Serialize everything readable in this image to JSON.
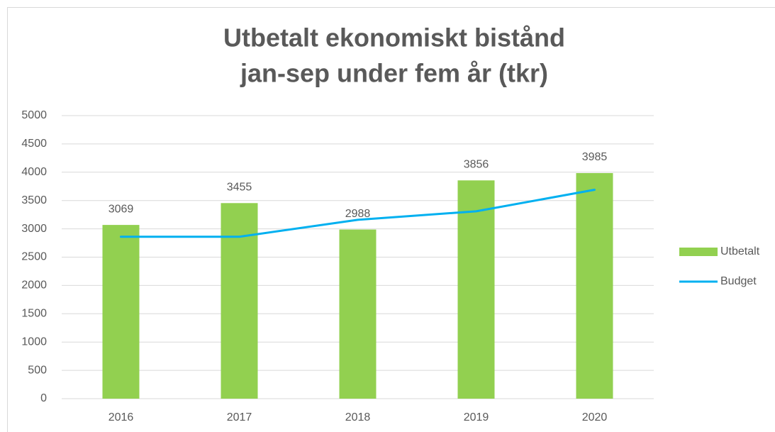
{
  "chart_data": {
    "type": "bar",
    "title": [
      "Utbetalt ekonomiskt bistånd",
      "jan-sep under fem år (tkr)"
    ],
    "categories": [
      "2016",
      "2017",
      "2018",
      "2019",
      "2020"
    ],
    "series": [
      {
        "name": "Utbetalt",
        "type": "bar",
        "color": "#92d050",
        "values": [
          3069,
          3455,
          2988,
          3856,
          3985
        ]
      },
      {
        "name": "Budget",
        "type": "line",
        "color": "#00b0f0",
        "values": [
          2860,
          2860,
          3160,
          3310,
          3690
        ]
      }
    ],
    "ylim": [
      0,
      5000
    ],
    "yticks": [
      0,
      500,
      1000,
      1500,
      2000,
      2500,
      3000,
      3500,
      4000,
      4500,
      5000
    ],
    "grid": true,
    "legend": "right"
  }
}
